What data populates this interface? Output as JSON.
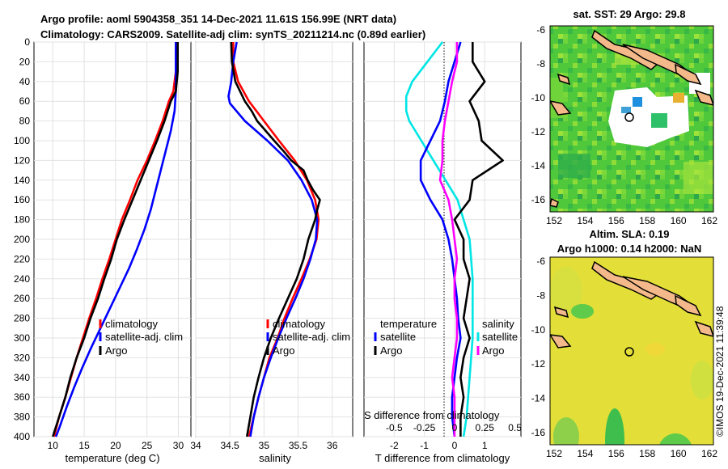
{
  "header": {
    "line1": "Argo profile: aoml 5904358_351 14-Dec-2021 11.61S 156.99E (NRT data)",
    "line2": "Climatology: CARS2009. Satellite-adj clim: synTS_20211214.nc (0.89d earlier)"
  },
  "colors": {
    "climatology": "#ff0000",
    "satellite": "#0000ff",
    "argo": "#000000",
    "t_sat": "#00e5e5",
    "s_sat": "#ff00ff"
  },
  "depth_axis": {
    "ticks": [
      0,
      20,
      40,
      60,
      80,
      100,
      120,
      140,
      160,
      180,
      200,
      220,
      240,
      260,
      280,
      300,
      320,
      340,
      360,
      380,
      400
    ],
    "ylim": [
      0,
      400
    ]
  },
  "chart_data": [
    {
      "type": "line",
      "id": "temp",
      "xlabel": "temperature (deg C)",
      "ylabel": "depth",
      "xlim": [
        7,
        32
      ],
      "ylim": [
        0,
        400
      ],
      "xticks": [
        10,
        15,
        20,
        25,
        30
      ],
      "series": [
        {
          "name": "climatology",
          "color": "#ff0000",
          "depth": [
            0,
            30,
            50,
            60,
            80,
            100,
            120,
            140,
            160,
            180,
            200,
            220,
            240,
            260,
            280,
            300,
            320,
            340,
            360,
            380,
            400
          ],
          "values": [
            29.6,
            29.6,
            29.2,
            28.5,
            27.5,
            26.3,
            25.0,
            23.5,
            22.3,
            21.0,
            20.0,
            19.0,
            17.9,
            16.9,
            15.8,
            14.8,
            13.8,
            12.9,
            12.0,
            11.0,
            10.2
          ]
        },
        {
          "name": "satellite-adj. clim",
          "color": "#0000ff",
          "depth": [
            0,
            30,
            50,
            70,
            90,
            110,
            130,
            150,
            170,
            190,
            210,
            230,
            250,
            270,
            290,
            310,
            330,
            350,
            370,
            390,
            400
          ],
          "values": [
            29.6,
            29.6,
            29.6,
            29.4,
            28.8,
            28.0,
            27.2,
            26.4,
            25.6,
            24.6,
            23.4,
            22.1,
            20.6,
            19.1,
            17.6,
            16.1,
            14.7,
            13.4,
            12.2,
            11.1,
            10.5
          ]
        },
        {
          "name": "Argo",
          "color": "#000000",
          "depth": [
            0,
            30,
            50,
            60,
            80,
            100,
            120,
            140,
            160,
            180,
            200,
            220,
            240,
            260,
            280,
            300,
            320,
            340,
            360,
            380,
            400
          ],
          "values": [
            29.9,
            29.9,
            29.6,
            28.8,
            27.8,
            26.6,
            25.3,
            24.0,
            22.7,
            21.4,
            20.2,
            19.3,
            18.2,
            17.2,
            16.0,
            15.0,
            13.8,
            12.8,
            12.0,
            11.0,
            10.0
          ]
        }
      ],
      "legend": {
        "location": "lower-right",
        "entries": [
          "climatology",
          "satellite-adj. clim",
          "Argo"
        ]
      }
    },
    {
      "type": "line",
      "id": "sal",
      "xlabel": "salinity",
      "ylabel": "depth",
      "xlim": [
        34.0,
        36.3
      ],
      "ylim": [
        0,
        400
      ],
      "xticks": [
        34,
        34.5,
        35,
        35.5,
        36
      ],
      "series": [
        {
          "name": "climatology",
          "color": "#ff0000",
          "depth": [
            0,
            20,
            40,
            60,
            80,
            100,
            120,
            140,
            160,
            180,
            200,
            220,
            240,
            260,
            280,
            300,
            320,
            340,
            360,
            380,
            400
          ],
          "values": [
            34.55,
            34.55,
            34.62,
            34.78,
            35.0,
            35.22,
            35.45,
            35.63,
            35.75,
            35.8,
            35.77,
            35.67,
            35.55,
            35.42,
            35.3,
            35.2,
            35.08,
            35.0,
            34.92,
            34.85,
            34.78
          ]
        },
        {
          "name": "satellite-adj. clim",
          "color": "#0000ff",
          "depth": [
            0,
            20,
            40,
            55,
            62,
            80,
            100,
            120,
            140,
            160,
            180,
            200,
            220,
            240,
            260,
            280,
            300,
            320,
            340,
            360,
            380,
            400
          ],
          "values": [
            34.6,
            34.55,
            34.52,
            34.48,
            34.5,
            34.72,
            35.05,
            35.35,
            35.55,
            35.7,
            35.78,
            35.76,
            35.68,
            35.58,
            35.46,
            35.33,
            35.21,
            35.1,
            35.0,
            34.92,
            34.85,
            34.8
          ]
        },
        {
          "name": "Argo",
          "color": "#000000",
          "depth": [
            0,
            20,
            40,
            60,
            70,
            80,
            100,
            110,
            120,
            130,
            140,
            150,
            160,
            170,
            180,
            200,
            220,
            240,
            260,
            280,
            300,
            320,
            340,
            360,
            380,
            400
          ],
          "values": [
            34.52,
            34.53,
            34.58,
            34.72,
            34.82,
            34.9,
            35.15,
            35.28,
            35.4,
            35.58,
            35.64,
            35.72,
            35.82,
            35.78,
            35.75,
            35.65,
            35.58,
            35.48,
            35.35,
            35.22,
            35.1,
            35.0,
            34.92,
            34.85,
            34.8,
            34.75
          ]
        }
      ],
      "legend": {
        "location": "lower-right",
        "entries": [
          "climatology",
          "satellite-adj. clim",
          "Argo"
        ]
      }
    },
    {
      "type": "line",
      "id": "diff",
      "xlabel": "T difference from climatology",
      "xlabel_top": "S difference from climatology",
      "xlim": [
        -3,
        2.2
      ],
      "ylim": [
        0,
        400
      ],
      "xticks": [
        -2,
        -1,
        0,
        1
      ],
      "xticks_s": [
        "-0.5",
        "-0.25",
        "0",
        "0.25",
        "0.5"
      ],
      "series": [
        {
          "name": "T satellite",
          "color": "#00e5e5",
          "units": "T",
          "depth": [
            0,
            20,
            40,
            55,
            70,
            80,
            100,
            120,
            140,
            160,
            180,
            200,
            240,
            300,
            340,
            380,
            400
          ],
          "values": [
            -0.4,
            -0.9,
            -1.4,
            -1.6,
            -1.6,
            -1.5,
            -1.1,
            -0.7,
            -0.3,
            0.1,
            0.3,
            0.5,
            0.6,
            0.6,
            0.5,
            0.4,
            0.3
          ]
        },
        {
          "name": "T Argo",
          "color": "#000000",
          "units": "T",
          "depth": [
            0,
            20,
            40,
            60,
            80,
            100,
            120,
            140,
            160,
            180,
            200,
            220,
            240,
            260,
            280,
            300,
            320,
            340,
            360,
            380,
            400
          ],
          "values": [
            0.6,
            0.6,
            1.0,
            0.5,
            0.8,
            0.9,
            1.6,
            0.6,
            0.5,
            0.0,
            0.3,
            0.3,
            0.5,
            0.4,
            0.3,
            0.5,
            0.3,
            0.2,
            0.3,
            0.2,
            0.2
          ]
        },
        {
          "name": "S satellite",
          "color": "#0000ff",
          "units": "S",
          "depth": [
            0,
            20,
            40,
            60,
            80,
            100,
            120,
            140,
            160,
            180,
            200,
            220,
            240,
            260,
            280,
            300,
            320,
            340,
            360,
            380,
            400
          ],
          "values": [
            0.05,
            0.0,
            -0.05,
            -0.08,
            -0.12,
            -0.2,
            -0.28,
            -0.28,
            -0.2,
            -0.1,
            -0.05,
            -0.02,
            0.0,
            0.02,
            0.03,
            0.05,
            0.02,
            0.0,
            -0.02,
            -0.02,
            0.0
          ]
        },
        {
          "name": "S Argo",
          "color": "#ff00ff",
          "units": "S",
          "depth": [
            0,
            20,
            40,
            60,
            80,
            100,
            120,
            140,
            160,
            180,
            200,
            220,
            240,
            260,
            280,
            300,
            320,
            340,
            360,
            380,
            400
          ],
          "values": [
            0.02,
            0.02,
            -0.02,
            -0.05,
            -0.08,
            -0.1,
            -0.1,
            -0.12,
            -0.05,
            -0.02,
            0.0,
            0.02,
            0.0,
            0.0,
            0.02,
            0.02,
            0.0,
            -0.02,
            0.0,
            0.0,
            0.0
          ]
        }
      ],
      "legend_left": {
        "header": "temperature",
        "entries": [
          "satellite",
          "Argo"
        ]
      },
      "legend_right": {
        "header": "salinity",
        "entries": [
          "satellite",
          "Argo"
        ]
      }
    }
  ],
  "maps": {
    "sst": {
      "title": "sat. SST: 29 Argo: 29.8",
      "xticks": [
        "152",
        "154",
        "156",
        "158",
        "160",
        "162"
      ],
      "yticks": [
        "-6",
        "-8",
        "-10",
        "-12",
        "-14",
        "-16"
      ]
    },
    "sla": {
      "title1": "Altim. SLA: 0.19",
      "title2": "Argo h1000: 0.14 h2000: NaN",
      "xticks": [
        "152",
        "154",
        "156",
        "158",
        "160",
        "162"
      ],
      "yticks": [
        "-6",
        "-8",
        "-10",
        "-12",
        "-14",
        "-16"
      ]
    }
  },
  "credit": "©IMOS 19-Dec-2021 11:39:48"
}
